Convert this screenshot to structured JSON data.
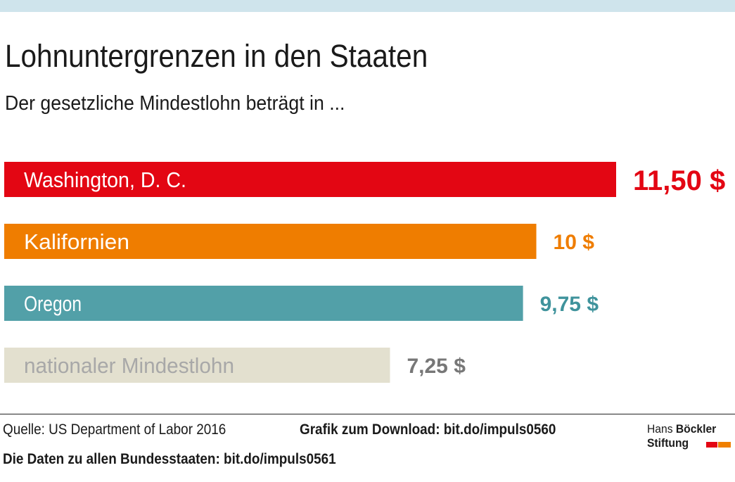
{
  "header": {
    "title": "Lohnuntergrenzen in den Staaten",
    "subtitle": "Der gesetzliche Mindestlohn beträgt in ..."
  },
  "chart_data": {
    "type": "bar",
    "orientation": "horizontal",
    "categories": [
      "Washington, D. C.",
      "Kalifornien",
      "Oregon",
      "nationaler Mindestlohn"
    ],
    "values": [
      11.5,
      10,
      9.75,
      7.25
    ],
    "value_labels": [
      "11,50 $",
      "10 $",
      "9,75 $",
      "7,25 $"
    ],
    "colors": [
      "#e30613",
      "#ef7d00",
      "#52a0a8",
      "#e3e0cf"
    ],
    "label_colors": [
      "#ffffff",
      "#ffffff",
      "#ffffff",
      "#a8a8a8"
    ],
    "value_colors": [
      "#e30613",
      "#ef7d00",
      "#3f939c",
      "#777777"
    ],
    "unit": "$",
    "xlim": [
      0,
      11.5
    ],
    "grid": false
  },
  "footer": {
    "source": "Quelle: US Department of Labor 2016",
    "download": "Grafik zum Download: bit.do/impuls0560",
    "data_link": "Die Daten zu allen Bundesstaaten: bit.do/impuls0561"
  },
  "logo": {
    "line1_regular": "Hans",
    "line1_bold": "Böckler",
    "line2": "Stiftung",
    "colors": [
      "#e30613",
      "#f08000"
    ]
  }
}
